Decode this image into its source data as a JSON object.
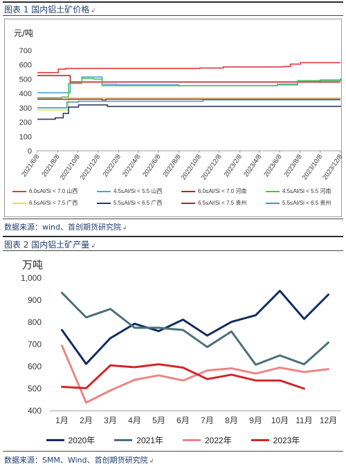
{
  "figure1": {
    "caption": "图表 1 国内铝土矿价格",
    "source": "数据来源：wind、首创期货研究院"
  },
  "figure2": {
    "caption": "图表 2 国内铝土矿产量",
    "source": "数据来源：SMM、Wind、首创期货研究院"
  },
  "caption_mark": "↲",
  "chart_data": [
    {
      "type": "line",
      "ylabel": "元/吨",
      "ylim": [
        0,
        700
      ],
      "yticks": [
        0,
        100,
        200,
        300,
        400,
        500,
        600,
        700
      ],
      "xlim": [
        "2021-06-08",
        "2023-12-08"
      ],
      "xticks": [
        "2021/6/8",
        "2021/8/8",
        "2021/10/8",
        "2021/12/8",
        "2022/2/8",
        "2022/4/8",
        "2022/6/8",
        "2022/8/8",
        "2022/10/8",
        "2022/12/8",
        "2023/2/8",
        "2023/4/8",
        "2023/6/8",
        "2023/8/8",
        "2023/10/8",
        "2023/12/8"
      ],
      "grid": false,
      "legend": "bottom",
      "series": [
        {
          "name": "6.0≤Al/Si < 7.0 山西",
          "color": "#e0393e",
          "points": [
            [
              "2021-06-08",
              545
            ],
            [
              "2021-08-01",
              545
            ],
            [
              "2021-08-10",
              570
            ],
            [
              "2021-09-01",
              575
            ],
            [
              "2022-10-10",
              578
            ],
            [
              "2022-12-20",
              585
            ],
            [
              "2023-06-20",
              588
            ],
            [
              "2023-07-10",
              605
            ],
            [
              "2023-08-10",
              615
            ],
            [
              "2023-12-08",
              615
            ]
          ]
        },
        {
          "name": "4.5≤Al/Si < 5.5 山西",
          "color": "#4aa3df",
          "points": [
            [
              "2021-06-08",
              405
            ],
            [
              "2021-08-20",
              405
            ],
            [
              "2021-09-15",
              470
            ],
            [
              "2021-10-20",
              515
            ],
            [
              "2021-11-20",
              515
            ],
            [
              "2021-12-20",
              465
            ],
            [
              "2022-02-01",
              460
            ],
            [
              "2022-08-08",
              455
            ],
            [
              "2023-06-01",
              460
            ],
            [
              "2023-08-01",
              480
            ],
            [
              "2023-10-08",
              495
            ],
            [
              "2023-12-08",
              500
            ]
          ]
        },
        {
          "name": "6.0≤Al/Si < 7.0 河南",
          "color": "#c41e25",
          "points": [
            [
              "2021-06-08",
              525
            ],
            [
              "2021-09-01",
              525
            ],
            [
              "2021-09-15",
              480
            ],
            [
              "2023-12-08",
              480
            ]
          ]
        },
        {
          "name": "4.5≤Al/Si < 5.5 河南",
          "color": "#4cbf4c",
          "points": [
            [
              "2021-06-08",
              370
            ],
            [
              "2021-08-20",
              375
            ],
            [
              "2021-09-10",
              470
            ],
            [
              "2021-10-20",
              505
            ],
            [
              "2021-11-25",
              500
            ],
            [
              "2021-12-20",
              455
            ],
            [
              "2023-03-01",
              455
            ],
            [
              "2023-06-01",
              465
            ],
            [
              "2023-08-01",
              490
            ],
            [
              "2023-12-08",
              505
            ]
          ]
        },
        {
          "name": "6.5≤Al/Si < 7.5 广西",
          "color": "#e3e040",
          "points": [
            [
              "2021-06-08",
              285
            ],
            [
              "2021-08-10",
              285
            ],
            [
              "2021-09-10",
              370
            ],
            [
              "2023-12-08",
              370
            ]
          ]
        },
        {
          "name": "5.5≤Al/Si < 6.5 广西",
          "color": "#2b3a5c",
          "points": [
            [
              "2021-06-08",
              220
            ],
            [
              "2021-08-01",
              230
            ],
            [
              "2021-08-25",
              260
            ],
            [
              "2021-09-10",
              305
            ],
            [
              "2021-10-10",
              320
            ],
            [
              "2021-12-20",
              320
            ],
            [
              "2022-01-05",
              310
            ],
            [
              "2023-12-08",
              315
            ]
          ]
        },
        {
          "name": "6.5≤Al/Si < 7.5 贵州",
          "color": "#a8243a",
          "points": [
            [
              "2021-06-08",
              360
            ],
            [
              "2021-09-01",
              360
            ],
            [
              "2021-09-15",
              360
            ],
            [
              "2021-12-20",
              355
            ],
            [
              "2022-01-01",
              360
            ],
            [
              "2023-12-08",
              360
            ]
          ]
        },
        {
          "name": "5.5≤Al/Si < 6.5 贵州",
          "color": "#3a98c8",
          "points": [
            [
              "2021-06-08",
              300
            ],
            [
              "2021-08-10",
              300
            ],
            [
              "2021-09-05",
              340
            ],
            [
              "2021-10-10",
              345
            ],
            [
              "2022-10-08",
              345
            ],
            [
              "2022-10-20",
              355
            ],
            [
              "2023-12-08",
              355
            ]
          ]
        }
      ]
    },
    {
      "type": "line",
      "ylabel": "万吨",
      "ylim": [
        400,
        1000
      ],
      "yticks": [
        "400",
        "500",
        "600",
        "700",
        "800",
        "900",
        "1,000"
      ],
      "categories": [
        "1月",
        "2月",
        "3月",
        "4月",
        "5月",
        "6月",
        "7月",
        "8月",
        "9月",
        "10月",
        "11月",
        "12月"
      ],
      "grid": false,
      "legend": "bottom",
      "series": [
        {
          "name": "2020年",
          "color": "#0e2d5c",
          "values": [
            765,
            612,
            728,
            793,
            760,
            812,
            740,
            802,
            832,
            942,
            815,
            925
          ]
        },
        {
          "name": "2021年",
          "color": "#4b7078",
          "values": [
            933,
            822,
            860,
            775,
            775,
            765,
            688,
            758,
            608,
            650,
            610,
            708
          ]
        },
        {
          "name": "2022年",
          "color": "#ef8383",
          "values": [
            694,
            437,
            492,
            540,
            560,
            537,
            582,
            592,
            568,
            595,
            575,
            588
          ]
        },
        {
          "name": "2023年",
          "color": "#d1242b",
          "values": [
            508,
            502,
            605,
            597,
            610,
            595,
            543,
            563,
            537,
            537,
            500,
            null
          ]
        }
      ]
    }
  ]
}
